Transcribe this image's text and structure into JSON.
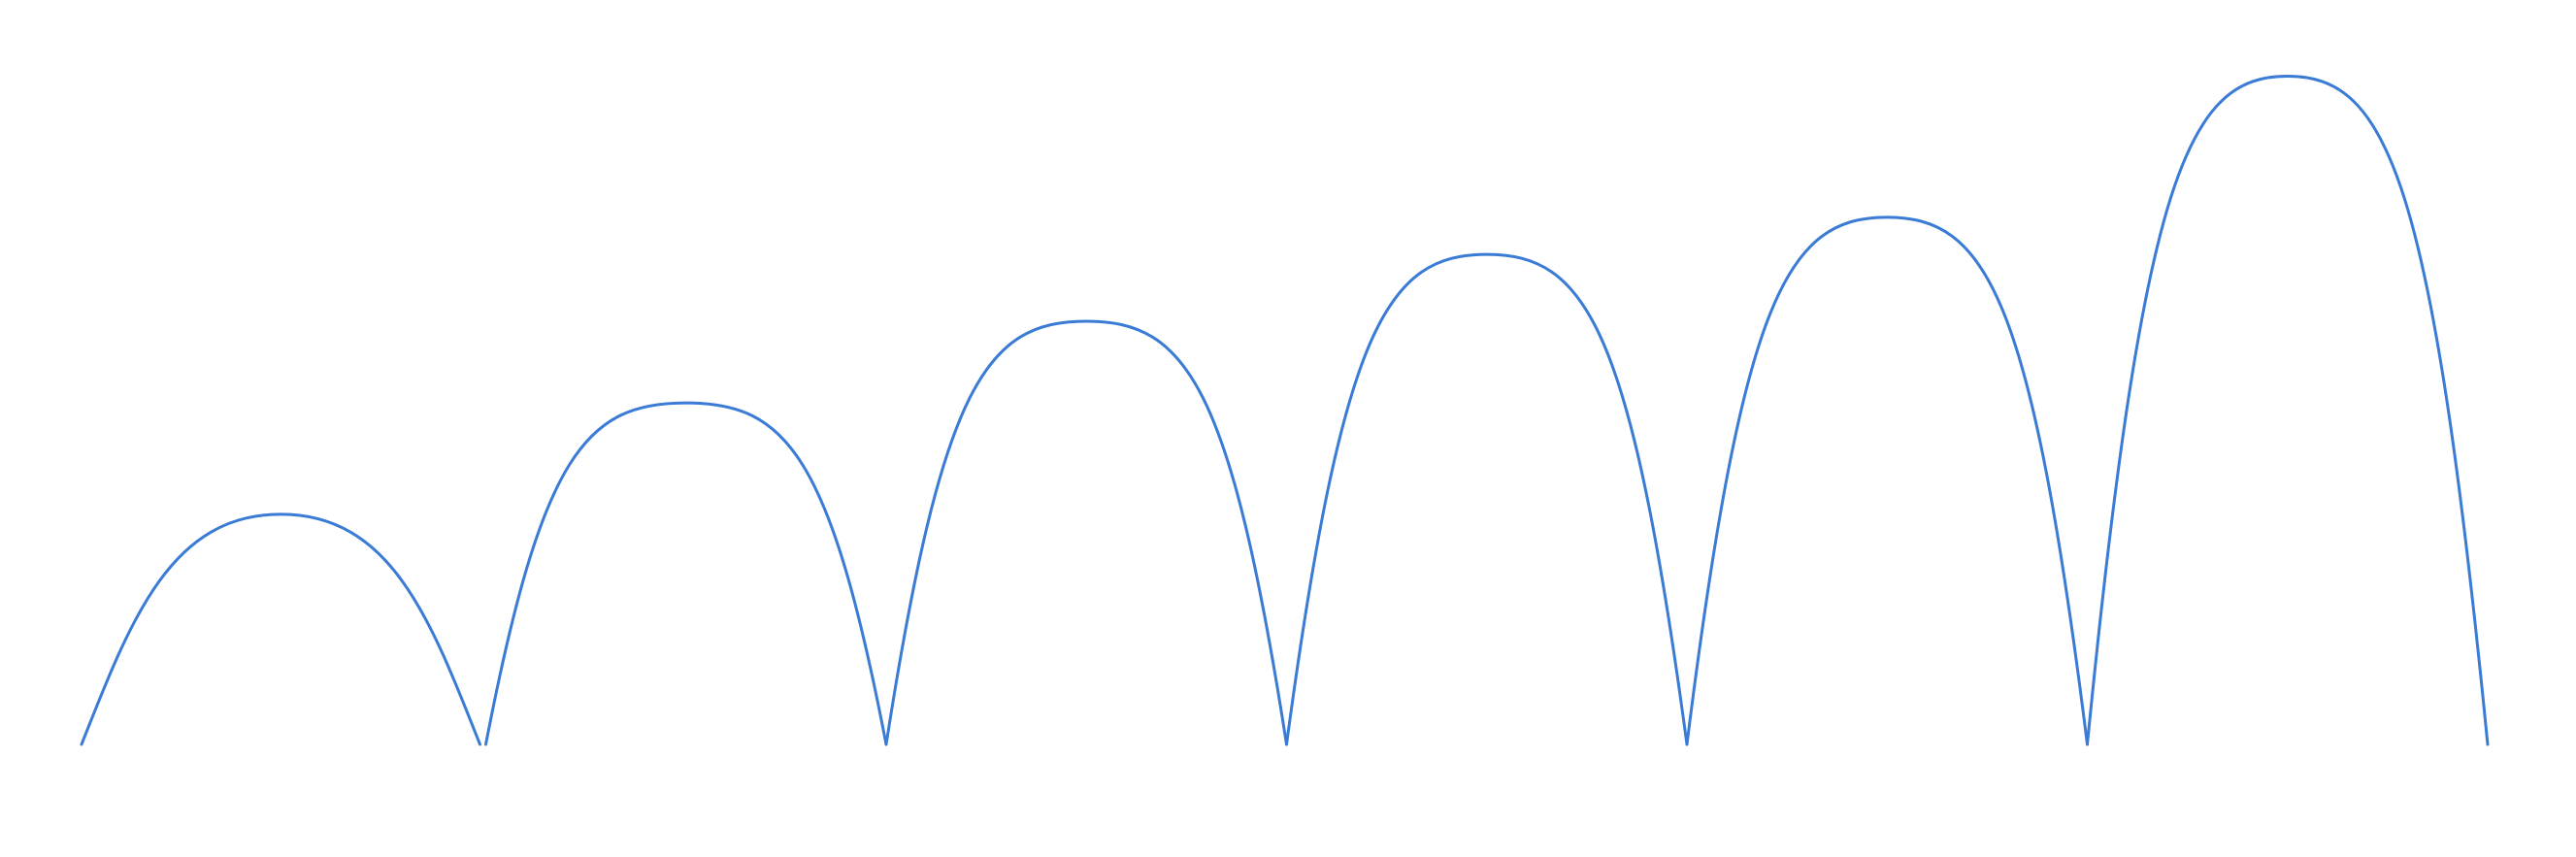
{
  "diagram": {
    "stroke_color": "#3a7bd5",
    "background": "#ffffff",
    "arcs": [
      {
        "height_units": 0.31,
        "shape": "round"
      },
      {
        "height_units": 0.46,
        "shape": "pointed"
      },
      {
        "height_units": 0.57,
        "shape": "pointed"
      },
      {
        "height_units": 0.66,
        "shape": "pointed"
      },
      {
        "height_units": 0.71,
        "shape": "pointed"
      },
      {
        "height_units": 0.9,
        "shape": "pointed"
      }
    ]
  }
}
